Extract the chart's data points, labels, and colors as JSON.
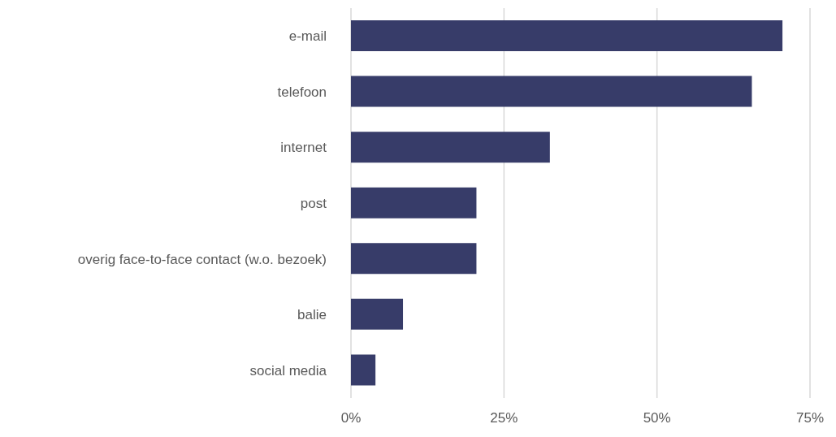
{
  "chart_data": {
    "type": "bar",
    "orientation": "horizontal",
    "categories": [
      "e-mail",
      "telefoon",
      "internet",
      "post",
      "overig face-to-face contact (w.o. bezoek)",
      "balie",
      "social media"
    ],
    "values": [
      70.5,
      65.5,
      32.5,
      20.5,
      20.5,
      8.5,
      4
    ],
    "color": "#373c69",
    "xlim": [
      0,
      75
    ],
    "xticks": [
      {
        "value": 0,
        "label": "0%"
      },
      {
        "value": 25,
        "label": "25%"
      },
      {
        "value": 50,
        "label": "50%"
      },
      {
        "value": 75,
        "label": "75%"
      }
    ],
    "grid": "x",
    "legend": false
  }
}
